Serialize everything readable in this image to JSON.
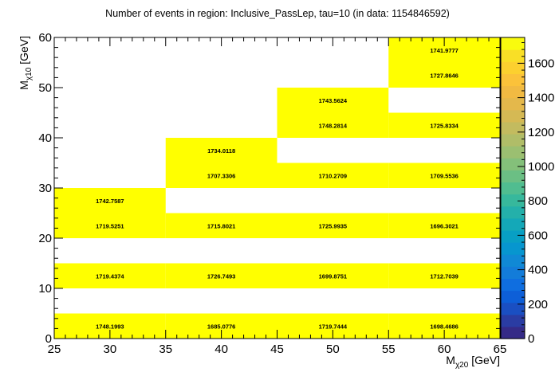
{
  "chart_data": {
    "type": "heatmap",
    "title": "Number of events in region: Inclusive_PassLep, tau=10 (in data: 1154846592)",
    "xlabel": {
      "main": "M",
      "sub": "χ20",
      "unit": " [GeV]"
    },
    "ylabel": {
      "main": "M",
      "sub": "χ10",
      "unit": " [GeV]"
    },
    "xlim": [
      25,
      65
    ],
    "ylim": [
      0,
      60
    ],
    "zlim": [
      0,
      1750
    ],
    "x_ticks": [
      "25",
      "30",
      "35",
      "40",
      "45",
      "50",
      "55",
      "60",
      "65"
    ],
    "y_ticks": [
      "0",
      "10",
      "20",
      "30",
      "40",
      "50",
      "60"
    ],
    "z_ticks": [
      "0",
      "200",
      "400",
      "600",
      "800",
      "1000",
      "1200",
      "1400",
      "1600"
    ],
    "cells": [
      {
        "x0": 25,
        "x1": 35,
        "y0": 0,
        "y1": 5,
        "value": 1748.1993,
        "label": "1748.1993"
      },
      {
        "x0": 35,
        "x1": 45,
        "y0": 0,
        "y1": 5,
        "value": 1685.0776,
        "label": "1685.0776"
      },
      {
        "x0": 45,
        "x1": 55,
        "y0": 0,
        "y1": 5,
        "value": 1719.7444,
        "label": "1719.7444"
      },
      {
        "x0": 55,
        "x1": 65,
        "y0": 0,
        "y1": 5,
        "value": 1698.4686,
        "label": "1698.4686"
      },
      {
        "x0": 25,
        "x1": 35,
        "y0": 10,
        "y1": 15,
        "value": 1719.4374,
        "label": "1719.4374"
      },
      {
        "x0": 35,
        "x1": 45,
        "y0": 10,
        "y1": 15,
        "value": 1726.7493,
        "label": "1726.7493"
      },
      {
        "x0": 45,
        "x1": 55,
        "y0": 10,
        "y1": 15,
        "value": 1699.8751,
        "label": "1699.8751"
      },
      {
        "x0": 55,
        "x1": 65,
        "y0": 10,
        "y1": 15,
        "value": 1712.7039,
        "label": "1712.7039"
      },
      {
        "x0": 25,
        "x1": 35,
        "y0": 20,
        "y1": 25,
        "value": 1719.5251,
        "label": "1719.5251"
      },
      {
        "x0": 35,
        "x1": 45,
        "y0": 20,
        "y1": 25,
        "value": 1715.8021,
        "label": "1715.8021"
      },
      {
        "x0": 45,
        "x1": 55,
        "y0": 20,
        "y1": 25,
        "value": 1725.9935,
        "label": "1725.9935"
      },
      {
        "x0": 55,
        "x1": 65,
        "y0": 20,
        "y1": 25,
        "value": 1696.3021,
        "label": "1696.3021"
      },
      {
        "x0": 25,
        "x1": 35,
        "y0": 25,
        "y1": 30,
        "value": 1742.7587,
        "label": "1742.7587"
      },
      {
        "x0": 35,
        "x1": 45,
        "y0": 30,
        "y1": 35,
        "value": 1707.3306,
        "label": "1707.3306"
      },
      {
        "x0": 45,
        "x1": 55,
        "y0": 30,
        "y1": 35,
        "value": 1710.2709,
        "label": "1710.2709"
      },
      {
        "x0": 55,
        "x1": 65,
        "y0": 30,
        "y1": 35,
        "value": 1709.5536,
        "label": "1709.5536"
      },
      {
        "x0": 35,
        "x1": 45,
        "y0": 35,
        "y1": 40,
        "value": 1734.0118,
        "label": "1734.0118"
      },
      {
        "x0": 45,
        "x1": 55,
        "y0": 40,
        "y1": 45,
        "value": 1748.2814,
        "label": "1748.2814"
      },
      {
        "x0": 55,
        "x1": 65,
        "y0": 40,
        "y1": 45,
        "value": 1725.8334,
        "label": "1725.8334"
      },
      {
        "x0": 45,
        "x1": 55,
        "y0": 45,
        "y1": 50,
        "value": 1743.5624,
        "label": "1743.5624"
      },
      {
        "x0": 55,
        "x1": 65,
        "y0": 50,
        "y1": 55,
        "value": 1727.8646,
        "label": "1727.8646"
      },
      {
        "x0": 55,
        "x1": 65,
        "y0": 55,
        "y1": 60,
        "value": 1741.9777,
        "label": "1741.9777"
      }
    ],
    "cell_color": "#ffff00",
    "palette_colors": [
      "#352a87",
      "#2a3ca3",
      "#1a4fc2",
      "#0d5fd8",
      "#0f6ee0",
      "#137cd9",
      "#1089d5",
      "#0796cf",
      "#089fc4",
      "#14a8b8",
      "#24b0aa",
      "#37b89c",
      "#50bd90",
      "#6bbf84",
      "#84c07a",
      "#9bbf71",
      "#b0bd68",
      "#c3bb5f",
      "#d5b954",
      "#e4b84b",
      "#f1ba42",
      "#fbc23a",
      "#fcd02f",
      "#f9df26",
      "#f9fb0e"
    ],
    "grid": false,
    "legend": "color bar right"
  }
}
